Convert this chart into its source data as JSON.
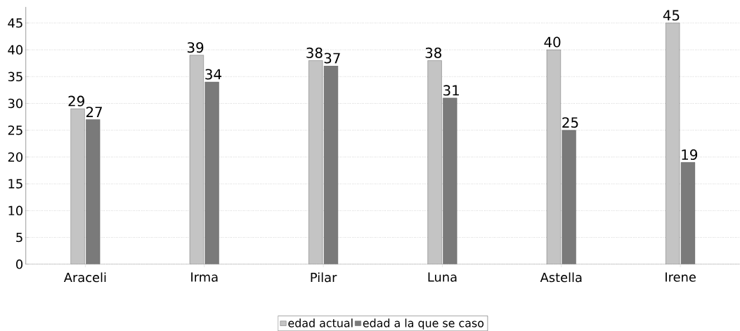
{
  "chart_data": {
    "type": "bar",
    "categories": [
      "Araceli",
      "Irma",
      "Pilar",
      "Luna",
      "Astella",
      "Irene"
    ],
    "series": [
      {
        "name": "edad actual",
        "color": "#c4c4c4",
        "values": [
          29,
          39,
          38,
          38,
          40,
          45
        ]
      },
      {
        "name": "edad a la que se caso",
        "color": "#7a7a7a",
        "values": [
          27,
          34,
          37,
          31,
          25,
          19
        ]
      }
    ],
    "ylim": [
      0,
      48
    ],
    "yticks": [
      0,
      5,
      10,
      15,
      20,
      25,
      30,
      35,
      40,
      45
    ],
    "grid": "y",
    "data_labels": true,
    "legend": "bottom"
  }
}
